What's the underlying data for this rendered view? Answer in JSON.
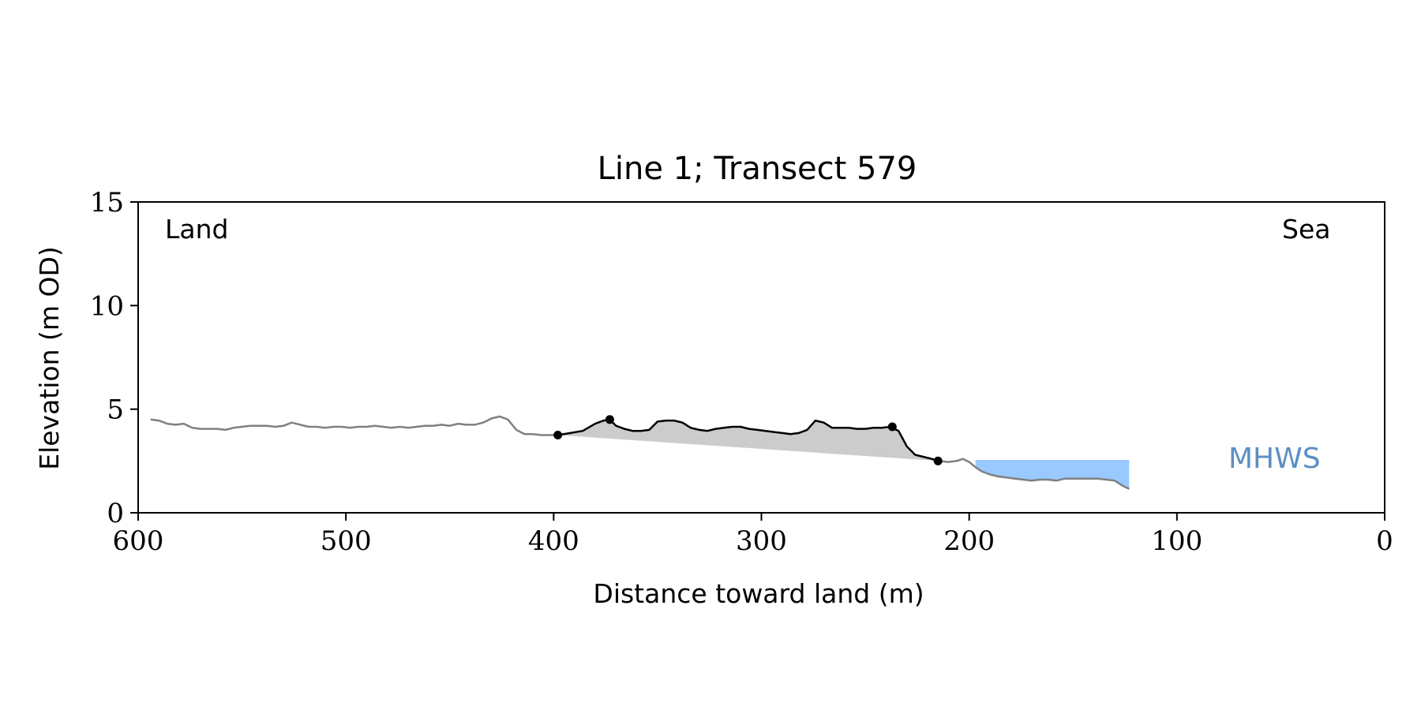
{
  "chart_data": {
    "type": "line",
    "title": "Line 1; Transect 579",
    "xlabel": "Distance toward land (m)",
    "ylabel": "Elevation (m OD)",
    "xlim": [
      600,
      0
    ],
    "ylim": [
      0,
      15
    ],
    "x_ticks": [
      600,
      500,
      400,
      300,
      200,
      100,
      0
    ],
    "y_ticks": [
      0,
      5,
      10,
      15
    ],
    "grid": false,
    "annotations": {
      "land": "Land",
      "sea": "Sea",
      "mhws": "MHWS"
    },
    "colors": {
      "profile": "#808080",
      "dune": "#000000",
      "dune_fill": "#cccccc",
      "water": "#99c9ff",
      "mhws_text": "#5b8fc4"
    },
    "mhws_level": 2.55,
    "profile": {
      "x": [
        594,
        590,
        586,
        582,
        578,
        574,
        570,
        566,
        562,
        558,
        554,
        550,
        546,
        542,
        538,
        534,
        530,
        526,
        522,
        518,
        514,
        510,
        506,
        502,
        498,
        494,
        490,
        486,
        482,
        478,
        474,
        470,
        466,
        462,
        458,
        454,
        450,
        446,
        442,
        438,
        434,
        430,
        426,
        422,
        418,
        414,
        410,
        406,
        402,
        398
      ],
      "y": [
        4.5,
        4.45,
        4.3,
        4.25,
        4.3,
        4.1,
        4.05,
        4.05,
        4.05,
        4.0,
        4.1,
        4.15,
        4.2,
        4.2,
        4.2,
        4.15,
        4.2,
        4.35,
        4.25,
        4.15,
        4.15,
        4.1,
        4.15,
        4.15,
        4.1,
        4.15,
        4.15,
        4.2,
        4.15,
        4.1,
        4.15,
        4.1,
        4.15,
        4.2,
        4.2,
        4.25,
        4.2,
        4.3,
        4.25,
        4.25,
        4.35,
        4.55,
        4.65,
        4.5,
        4.0,
        3.8,
        3.8,
        3.75,
        3.75,
        3.75
      ]
    },
    "dune": {
      "x": [
        398,
        392,
        386,
        380,
        376,
        373,
        370,
        366,
        362,
        358,
        354,
        350,
        346,
        342,
        338,
        334,
        330,
        326,
        322,
        318,
        314,
        310,
        306,
        302,
        298,
        294,
        290,
        286,
        282,
        278,
        274,
        270,
        266,
        262,
        258,
        254,
        250,
        246,
        242,
        238,
        234,
        230,
        226,
        222,
        218,
        215
      ],
      "y": [
        3.75,
        3.85,
        3.95,
        4.3,
        4.45,
        4.5,
        4.2,
        4.05,
        3.95,
        3.95,
        4.0,
        4.4,
        4.45,
        4.45,
        4.35,
        4.1,
        4.0,
        3.95,
        4.05,
        4.1,
        4.15,
        4.15,
        4.05,
        4.0,
        3.95,
        3.9,
        3.85,
        3.8,
        3.85,
        4.0,
        4.45,
        4.35,
        4.1,
        4.1,
        4.1,
        4.05,
        4.05,
        4.1,
        4.1,
        4.15,
        3.95,
        3.2,
        2.8,
        2.7,
        2.6,
        2.5
      ]
    },
    "dune_markers": [
      {
        "x": 398,
        "y": 3.75
      },
      {
        "x": 373,
        "y": 4.5
      },
      {
        "x": 237,
        "y": 4.15
      },
      {
        "x": 215,
        "y": 2.5
      }
    ],
    "dune_base": {
      "x": [
        398,
        215
      ],
      "y": [
        3.75,
        2.5
      ]
    },
    "seaward": {
      "x": [
        215,
        210,
        206,
        203,
        200,
        197,
        194,
        190,
        186,
        182,
        178,
        174,
        170,
        166,
        162,
        158,
        154,
        150,
        146,
        142,
        138,
        134,
        130,
        126,
        123
      ],
      "y": [
        2.5,
        2.45,
        2.5,
        2.6,
        2.45,
        2.2,
        2.0,
        1.85,
        1.75,
        1.7,
        1.65,
        1.6,
        1.55,
        1.6,
        1.6,
        1.55,
        1.65,
        1.65,
        1.65,
        1.65,
        1.65,
        1.6,
        1.55,
        1.3,
        1.15
      ]
    }
  }
}
